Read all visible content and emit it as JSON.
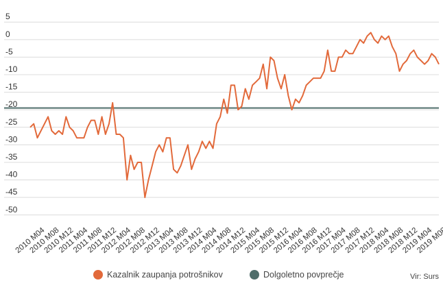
{
  "chart_data": {
    "type": "line",
    "y_ticks": [
      5,
      0,
      -5,
      -10,
      -15,
      -20,
      -25,
      -30,
      -35,
      -40,
      -45,
      -50
    ],
    "ylim": [
      -52,
      7
    ],
    "grid": true,
    "x_tick_labels": [
      "2010 M04",
      "2010 M08",
      "2010 M12",
      "2011 M04",
      "2011 M08",
      "2011 M12",
      "2012 M04",
      "2012 M08",
      "2012 M12",
      "2013 M04",
      "2013 M08",
      "2013 M12",
      "2014 M04",
      "2014 M08",
      "2014 M12",
      "2015 M04",
      "2015 M08",
      "2015 M12",
      "2016 M04",
      "2016 M08",
      "2016 M12",
      "2017 M04",
      "2017 M08",
      "2017 M12",
      "2018 M04",
      "2018 M08",
      "2018 M12",
      "2019 M04",
      "2019 M08"
    ],
    "series": [
      {
        "name": "Kazalnik zaupanja potrošnikov",
        "color": "#e2693a",
        "x_start": "2010 M01",
        "values": [
          -25,
          -24,
          -28,
          -26,
          -24,
          -22,
          -26,
          -27,
          -26,
          -27,
          -22,
          -25,
          -26,
          -28,
          -28,
          -28,
          -25,
          -23,
          -23,
          -27,
          -22,
          -27,
          -24,
          -18,
          -27,
          -27,
          -28,
          -40,
          -33,
          -37,
          -35,
          -35,
          -45,
          -40,
          -36,
          -32,
          -30,
          -32,
          -28,
          -28,
          -37,
          -38,
          -36,
          -33,
          -30,
          -37,
          -34,
          -32,
          -29,
          -31,
          -29,
          -31,
          -24,
          -22,
          -17,
          -21,
          -13,
          -13,
          -20,
          -19,
          -14,
          -17,
          -13,
          -12,
          -11,
          -7,
          -14,
          -5,
          -6,
          -11,
          -14,
          -10,
          -16,
          -20,
          -17,
          -18,
          -16,
          -13,
          -12,
          -11,
          -11,
          -11,
          -9,
          -3,
          -9,
          -9,
          -5,
          -5,
          -3,
          -4,
          -4,
          -2,
          0,
          -1,
          1,
          2,
          0,
          -1,
          1,
          0,
          1,
          -2,
          -4,
          -9,
          -7,
          -6,
          -4,
          -3,
          -5,
          -6,
          -7,
          -6,
          -4,
          -5,
          -7
        ]
      },
      {
        "name": "Dolgoletno povprečje",
        "color": "#4f6e6b",
        "values": [
          -19.5
        ]
      }
    ],
    "legend": {
      "placement": "bottom",
      "items": [
        {
          "label": "Kazalnik zaupanja potrošnikov",
          "color": "#e2693a"
        },
        {
          "label": "Dolgoletno povprečje",
          "color": "#4f6e6b"
        }
      ]
    },
    "source": "Vir: Surs"
  }
}
